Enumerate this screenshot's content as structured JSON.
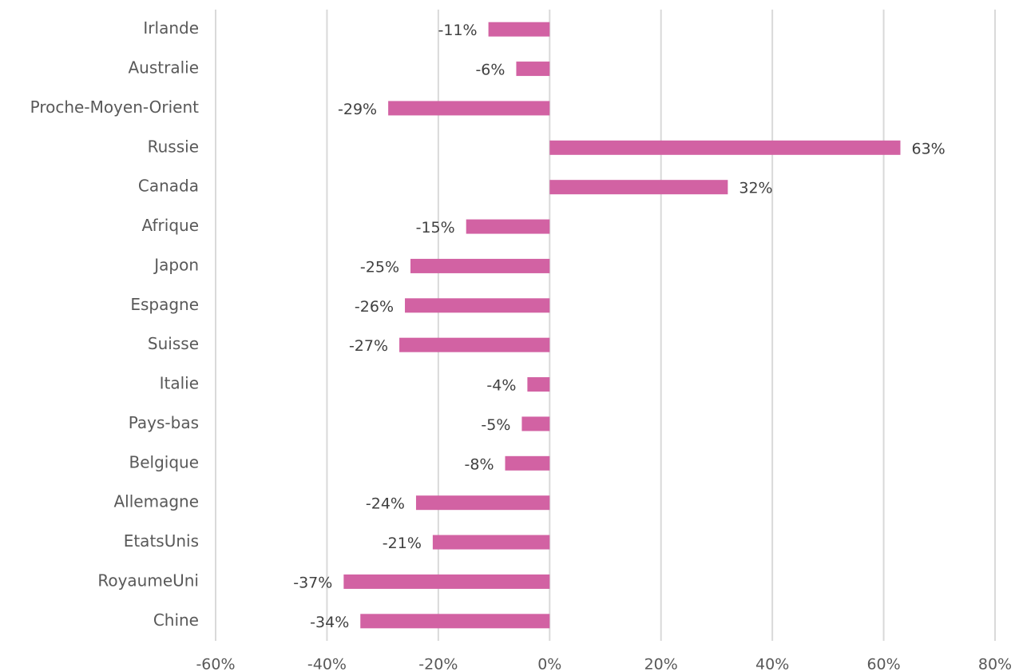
{
  "chart_data": {
    "type": "barh",
    "categories": [
      "Irlande",
      "Australie",
      "Proche-Moyen-Orient",
      "Russie",
      "Canada",
      "Afrique",
      "Japon",
      "Espagne",
      "Suisse",
      "Italie",
      "Pays-bas",
      "Belgique",
      "Allemagne",
      "EtatsUnis",
      "RoyaumeUni",
      "Chine"
    ],
    "values": [
      -11,
      -6,
      -29,
      63,
      32,
      -15,
      -25,
      -26,
      -27,
      -4,
      -5,
      -8,
      -24,
      -21,
      -37,
      -34
    ],
    "value_labels": [
      "-11%",
      "-6%",
      "-29%",
      "63%",
      "32%",
      "-15%",
      "-25%",
      "-26%",
      "-27%",
      "-4%",
      "-5%",
      "-8%",
      "-24%",
      "-21%",
      "-37%",
      "-34%"
    ],
    "color": "#d262a3",
    "xlim": [
      -60,
      80
    ],
    "xticks": [
      {
        "value": -60,
        "label": "-60%"
      },
      {
        "value": -40,
        "label": "-40%"
      },
      {
        "value": -20,
        "label": "-20%"
      },
      {
        "value": 0,
        "label": "0%"
      },
      {
        "value": 20,
        "label": "20%"
      },
      {
        "value": 40,
        "label": "40%"
      },
      {
        "value": 60,
        "label": "60%"
      },
      {
        "value": 80,
        "label": "80%"
      }
    ],
    "grid": true
  }
}
